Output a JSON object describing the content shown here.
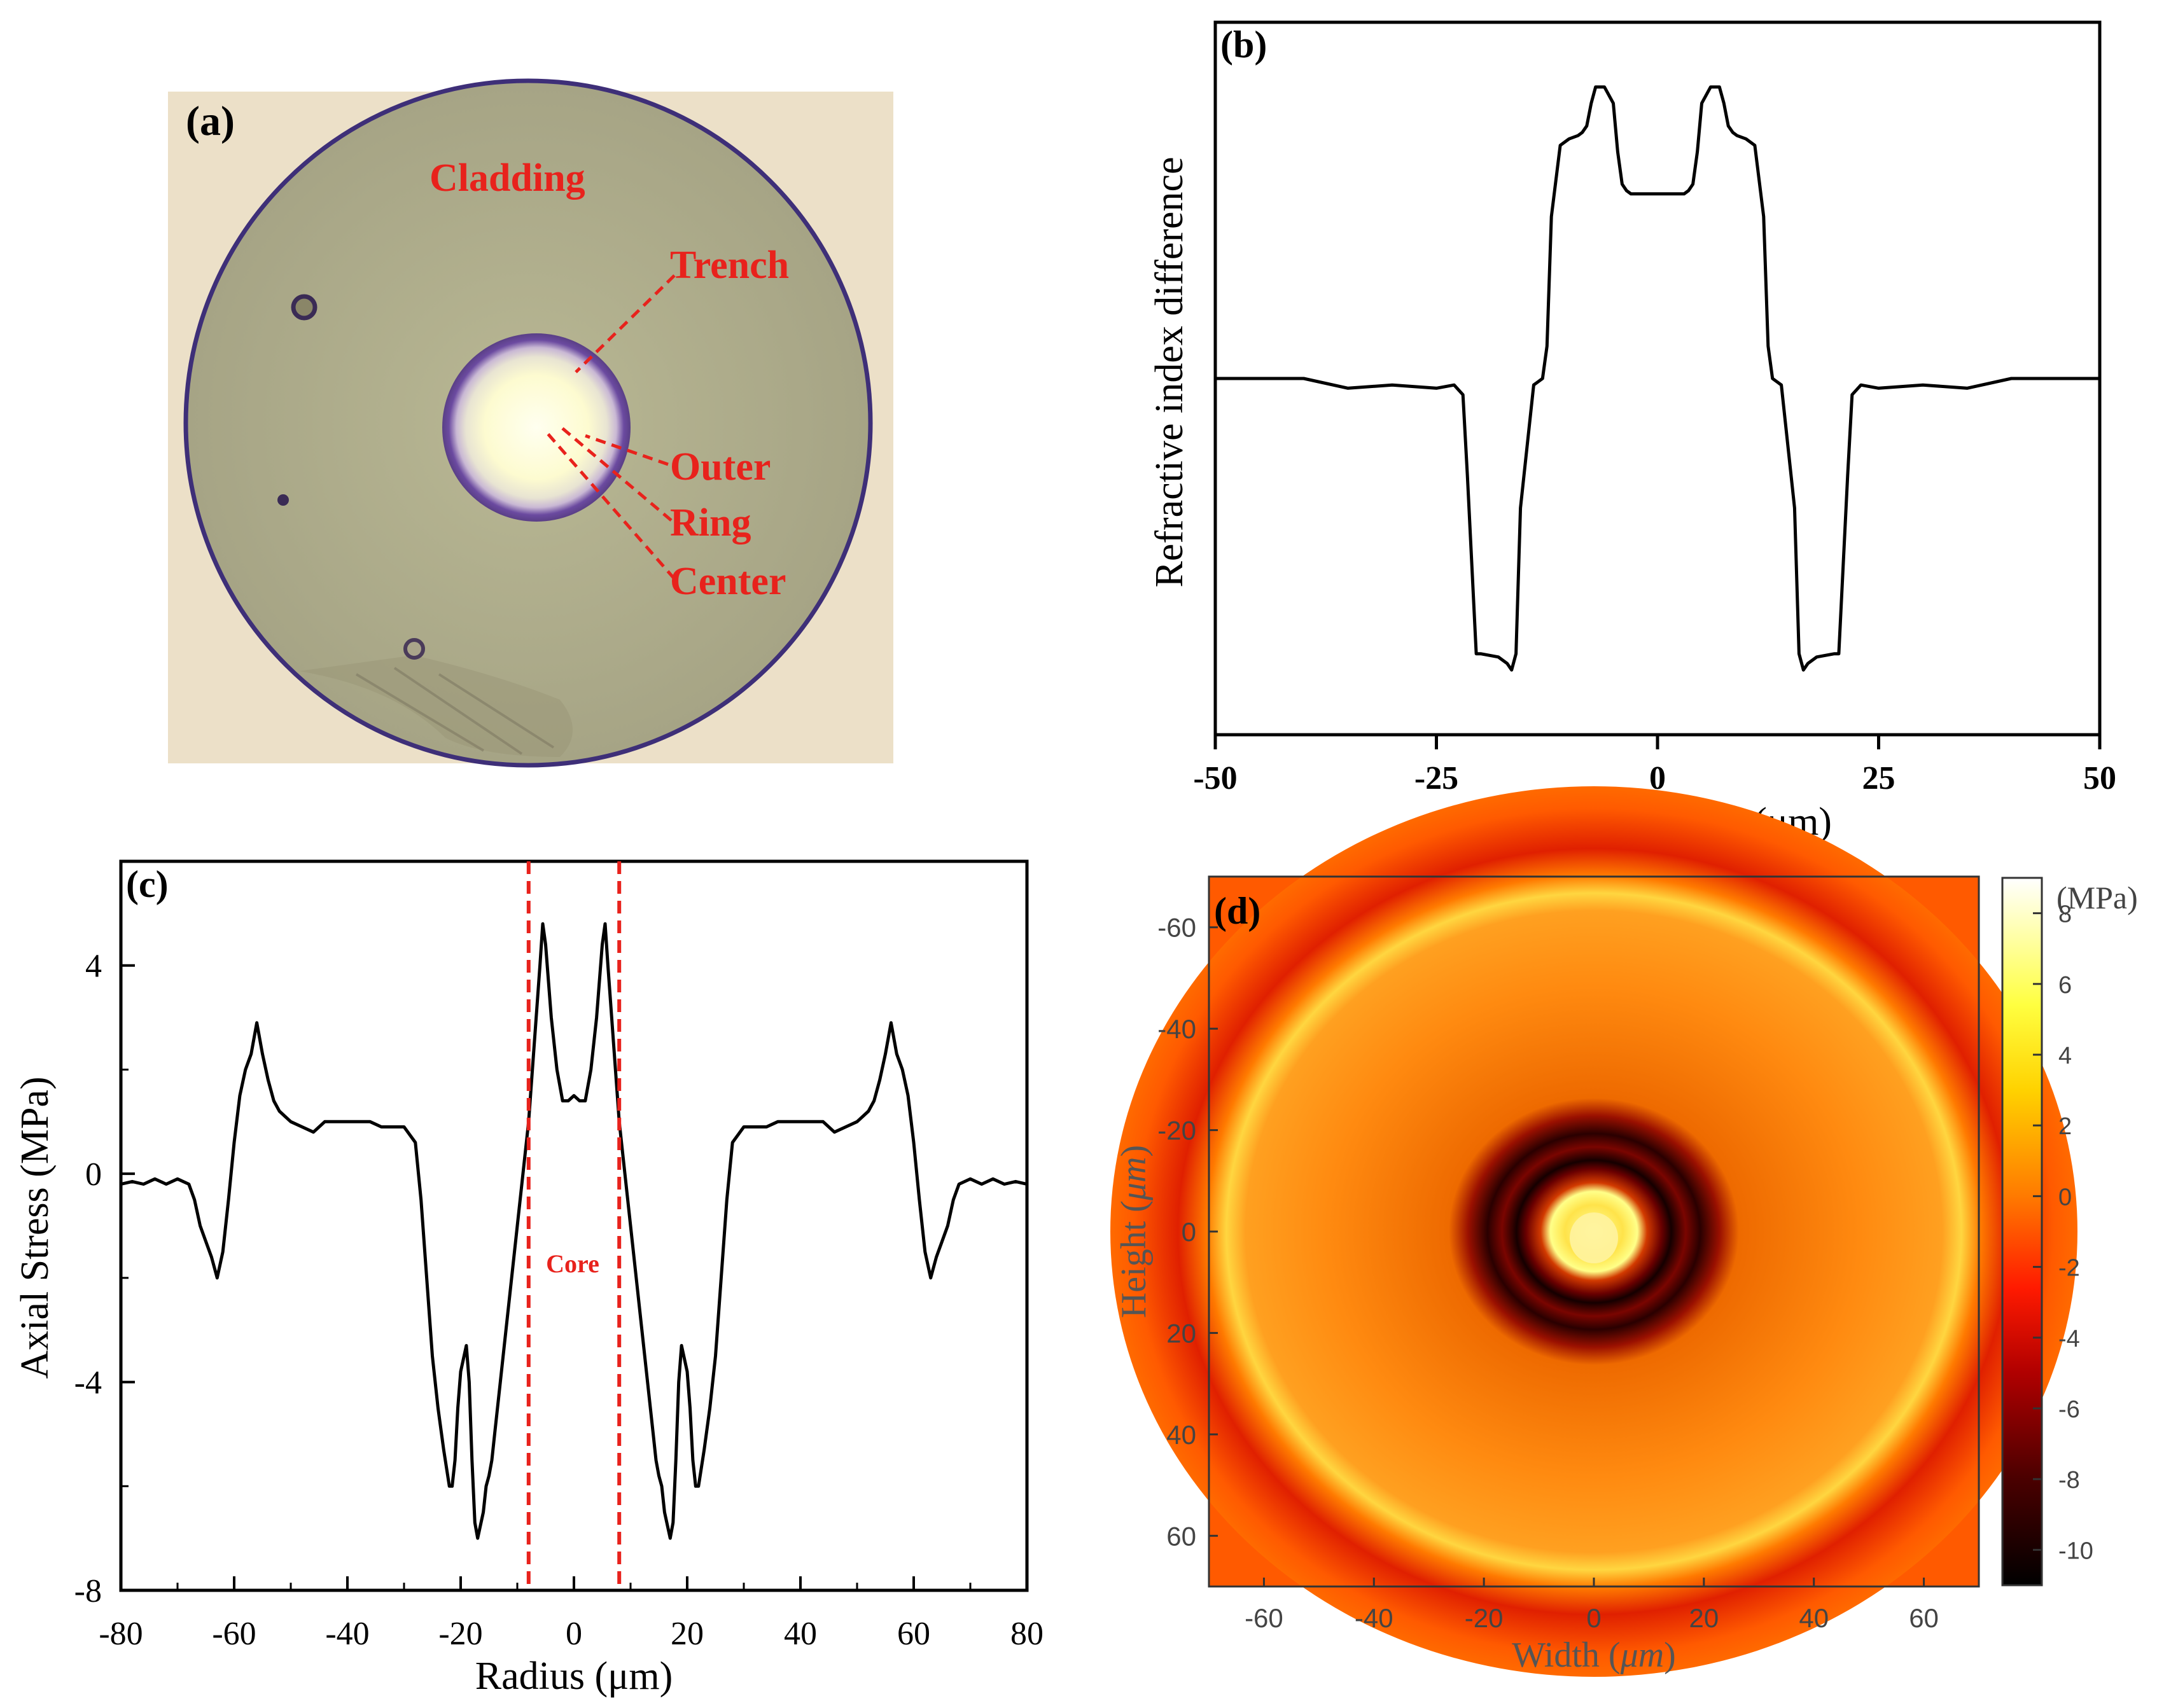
{
  "panel_a": {
    "label": "(a)",
    "annotations": [
      "Cladding",
      "Trench",
      "Outer",
      "Ring",
      "Center"
    ]
  },
  "chart_data": [
    {
      "id": "b",
      "type": "line",
      "panel_label": "(b)",
      "xlabel": "Radial parameter(μm)",
      "ylabel": "Refractive index difference",
      "xlim": [
        -50,
        50
      ],
      "ylim": [
        -1.1,
        1.1
      ],
      "xticks": [
        -50,
        -25,
        0,
        25,
        50
      ],
      "x": [
        -50,
        -40,
        -35,
        -30,
        -25,
        -23,
        -22,
        -21.5,
        -20.5,
        -20,
        -18,
        -17,
        -16.5,
        -16,
        -15.5,
        -14,
        -13,
        -12.5,
        -12,
        -11,
        -10,
        -9,
        -8.5,
        -8,
        -7.5,
        -7,
        -6,
        -5,
        -4.5,
        -4,
        -3.5,
        -3,
        0,
        3,
        3.5,
        4,
        4.5,
        5,
        6,
        7,
        7.5,
        8,
        8.5,
        9,
        10,
        11,
        12,
        12.5,
        13,
        14,
        15.5,
        16,
        16.5,
        17,
        18,
        20,
        20.5,
        21.5,
        22,
        23,
        25,
        30,
        35,
        40,
        50
      ],
      "y": [
        0,
        0,
        -0.03,
        -0.02,
        -0.03,
        -0.02,
        -0.05,
        -0.3,
        -0.85,
        -0.85,
        -0.86,
        -0.88,
        -0.9,
        -0.85,
        -0.4,
        -0.02,
        0,
        0.1,
        0.5,
        0.72,
        0.74,
        0.75,
        0.76,
        0.78,
        0.85,
        0.9,
        0.9,
        0.85,
        0.7,
        0.6,
        0.58,
        0.57,
        0.57,
        0.57,
        0.58,
        0.6,
        0.7,
        0.85,
        0.9,
        0.9,
        0.85,
        0.78,
        0.76,
        0.75,
        0.74,
        0.72,
        0.5,
        0.1,
        0,
        -0.02,
        -0.4,
        -0.85,
        -0.9,
        -0.88,
        -0.86,
        -0.85,
        -0.85,
        -0.3,
        -0.05,
        -0.02,
        -0.03,
        -0.02,
        -0.03,
        0,
        0
      ]
    },
    {
      "id": "c",
      "type": "line",
      "panel_label": "(c)",
      "xlabel": "Radius (μm)",
      "ylabel": "Axial Stress (MPa)",
      "xlim": [
        -80,
        80
      ],
      "ylim": [
        -8,
        6
      ],
      "xticks": [
        -80,
        -60,
        -40,
        -20,
        0,
        20,
        40,
        60,
        80
      ],
      "yticks": [
        -8,
        -4,
        0,
        4
      ],
      "core_lines_x": [
        -8,
        8
      ],
      "core_label": "Core",
      "x": [
        -80,
        -78,
        -76,
        -74,
        -72,
        -70,
        -68,
        -67,
        -66,
        -65,
        -64,
        -63,
        -62,
        -61,
        -60,
        -59,
        -58,
        -57,
        -56,
        -55,
        -54,
        -53,
        -52,
        -51,
        -50,
        -48,
        -46,
        -44,
        -42,
        -40,
        -38,
        -36,
        -34,
        -32,
        -30,
        -28,
        -27,
        -26,
        -25,
        -24,
        -23,
        -22,
        -21.5,
        -21,
        -20.5,
        -20,
        -19,
        -18.5,
        -18,
        -17.5,
        -17,
        -16,
        -15.5,
        -15,
        -14.5,
        -14,
        -13,
        -12,
        -11,
        -10,
        -9,
        -8,
        -7,
        -6,
        -5.5,
        -5,
        -4,
        -3,
        -2,
        -1,
        0,
        1,
        2,
        3,
        4,
        5,
        5.5,
        6,
        7,
        8,
        9,
        10,
        11,
        12,
        13,
        14,
        14.5,
        15,
        15.5,
        16,
        17,
        17.5,
        18,
        18.5,
        19,
        20,
        20.5,
        21,
        21.5,
        22,
        23,
        24,
        25,
        26,
        27,
        28,
        30,
        32,
        34,
        36,
        38,
        40,
        42,
        44,
        46,
        48,
        50,
        51,
        52,
        53,
        54,
        55,
        56,
        57,
        58,
        59,
        60,
        61,
        62,
        63,
        64,
        65,
        66,
        67,
        68,
        70,
        72,
        74,
        76,
        78,
        80
      ],
      "y": [
        -0.2,
        -0.15,
        -0.2,
        -0.1,
        -0.2,
        -0.1,
        -0.2,
        -0.5,
        -1.0,
        -1.3,
        -1.6,
        -2.0,
        -1.5,
        -0.5,
        0.6,
        1.5,
        2.0,
        2.3,
        2.9,
        2.3,
        1.8,
        1.4,
        1.2,
        1.1,
        1.0,
        0.9,
        0.8,
        1.0,
        1.0,
        1.0,
        1.0,
        1.0,
        0.9,
        0.9,
        0.9,
        0.6,
        -0.5,
        -2.0,
        -3.5,
        -4.5,
        -5.3,
        -6.0,
        -6.0,
        -5.5,
        -4.5,
        -3.8,
        -3.3,
        -4.0,
        -5.5,
        -6.7,
        -7.0,
        -6.5,
        -6.0,
        -5.8,
        -5.5,
        -5.0,
        -4.0,
        -3.0,
        -2.0,
        -1.0,
        0.0,
        1.0,
        2.5,
        4.0,
        4.8,
        4.4,
        3.0,
        2.0,
        1.4,
        1.4,
        1.5,
        1.4,
        1.4,
        2.0,
        3.0,
        4.4,
        4.8,
        4.0,
        2.5,
        1.0,
        0.0,
        -1.0,
        -2.0,
        -3.0,
        -4.0,
        -5.0,
        -5.5,
        -5.8,
        -6.0,
        -6.5,
        -7.0,
        -6.7,
        -5.5,
        -4.0,
        -3.3,
        -3.8,
        -4.5,
        -5.5,
        -6.0,
        -6.0,
        -5.3,
        -4.5,
        -3.5,
        -2.0,
        -0.5,
        0.6,
        0.9,
        0.9,
        0.9,
        1.0,
        1.0,
        1.0,
        1.0,
        1.0,
        0.8,
        0.9,
        1.0,
        1.1,
        1.2,
        1.4,
        1.8,
        2.3,
        2.9,
        2.3,
        2.0,
        1.5,
        0.6,
        -0.5,
        -1.5,
        -2.0,
        -1.6,
        -1.3,
        -1.0,
        -0.5,
        -0.2,
        -0.1,
        -0.2,
        -0.1,
        -0.2,
        -0.15,
        -0.2
      ]
    },
    {
      "id": "d",
      "type": "heatmap",
      "panel_label": "(d)",
      "xlabel": "Width",
      "xlabel_unit": "μm",
      "ylabel": "Height",
      "ylabel_unit": "μm",
      "xlim": [
        -70,
        70
      ],
      "ylim": [
        -70,
        70
      ],
      "xticks": [
        -60,
        -40,
        -20,
        0,
        20,
        40,
        60
      ],
      "yticks": [
        -60,
        -40,
        -20,
        0,
        20,
        40,
        60
      ],
      "colorbar_title": "(MPa)",
      "colorbar_ticks": [
        8,
        6,
        4,
        2,
        0,
        -2,
        -4,
        -6,
        -8,
        -10
      ],
      "colorbar_range": [
        -11,
        9
      ],
      "colors": {
        "min": "#000000",
        "low": "#7a0000",
        "mid_low": "#e00000",
        "mid": "#ff6a00",
        "high": "#ffe000",
        "max": "#ffffff"
      }
    }
  ]
}
